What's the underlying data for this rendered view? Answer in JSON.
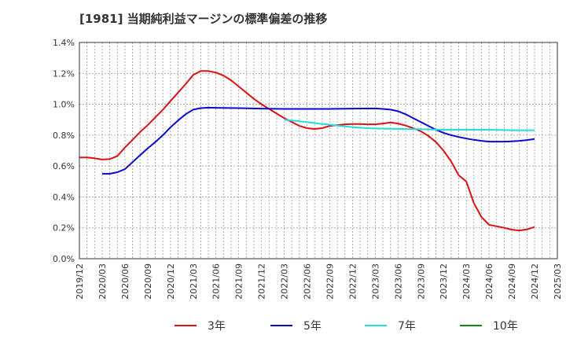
{
  "chart_data": {
    "type": "line",
    "title": "[1981]  当期純利益マージンの標準偏差の推移",
    "xlabel": "",
    "ylabel": "",
    "ylim": [
      0,
      1.4
    ],
    "y_ticks": [
      "0.0%",
      "0.2%",
      "0.4%",
      "0.6%",
      "0.8%",
      "1.0%",
      "1.2%",
      "1.4%"
    ],
    "x_ticks": [
      "2019/12",
      "2020/03",
      "2020/06",
      "2020/09",
      "2020/12",
      "2021/03",
      "2021/06",
      "2021/09",
      "2021/12",
      "2022/03",
      "2022/06",
      "2022/09",
      "2022/12",
      "2023/03",
      "2023/06",
      "2023/09",
      "2023/12",
      "2024/03",
      "2024/06",
      "2024/09",
      "2024/12",
      "2025/03"
    ],
    "grid": true,
    "legend_position": "bottom",
    "series": [
      {
        "name": "3年",
        "color": "#dd1111",
        "points": [
          [
            "2019/12",
            0.655
          ],
          [
            "2020/01",
            0.655
          ],
          [
            "2020/02",
            0.65
          ],
          [
            "2020/03",
            0.642
          ],
          [
            "2020/04",
            0.645
          ],
          [
            "2020/05",
            0.665
          ],
          [
            "2020/06",
            0.72
          ],
          [
            "2020/07",
            0.77
          ],
          [
            "2020/08",
            0.82
          ],
          [
            "2020/09",
            0.865
          ],
          [
            "2020/10",
            0.915
          ],
          [
            "2020/11",
            0.965
          ],
          [
            "2020/12",
            1.02
          ],
          [
            "2021/01",
            1.075
          ],
          [
            "2021/02",
            1.13
          ],
          [
            "2021/03",
            1.19
          ],
          [
            "2021/04",
            1.215
          ],
          [
            "2021/05",
            1.215
          ],
          [
            "2021/06",
            1.205
          ],
          [
            "2021/07",
            1.185
          ],
          [
            "2021/08",
            1.155
          ],
          [
            "2021/09",
            1.115
          ],
          [
            "2021/10",
            1.075
          ],
          [
            "2021/11",
            1.035
          ],
          [
            "2021/12",
            1.0
          ],
          [
            "2022/01",
            0.97
          ],
          [
            "2022/02",
            0.94
          ],
          [
            "2022/03",
            0.91
          ],
          [
            "2022/04",
            0.885
          ],
          [
            "2022/05",
            0.86
          ],
          [
            "2022/06",
            0.845
          ],
          [
            "2022/07",
            0.84
          ],
          [
            "2022/08",
            0.845
          ],
          [
            "2022/09",
            0.86
          ],
          [
            "2022/10",
            0.865
          ],
          [
            "2022/11",
            0.87
          ],
          [
            "2022/12",
            0.872
          ],
          [
            "2023/01",
            0.872
          ],
          [
            "2023/02",
            0.87
          ],
          [
            "2023/03",
            0.87
          ],
          [
            "2023/04",
            0.875
          ],
          [
            "2023/05",
            0.882
          ],
          [
            "2023/06",
            0.875
          ],
          [
            "2023/07",
            0.862
          ],
          [
            "2023/08",
            0.845
          ],
          [
            "2023/09",
            0.825
          ],
          [
            "2023/10",
            0.795
          ],
          [
            "2023/11",
            0.755
          ],
          [
            "2023/12",
            0.7
          ],
          [
            "2024/01",
            0.63
          ],
          [
            "2024/02",
            0.54
          ],
          [
            "2024/03",
            0.5
          ],
          [
            "2024/04",
            0.36
          ],
          [
            "2024/05",
            0.27
          ],
          [
            "2024/06",
            0.22
          ],
          [
            "2024/07",
            0.21
          ],
          [
            "2024/08",
            0.2
          ],
          [
            "2024/09",
            0.188
          ],
          [
            "2024/10",
            0.183
          ],
          [
            "2024/11",
            0.19
          ],
          [
            "2024/12",
            0.205
          ]
        ]
      },
      {
        "name": "5年",
        "color": "#0a0ad0",
        "points": [
          [
            "2020/03",
            0.55
          ],
          [
            "2020/04",
            0.55
          ],
          [
            "2020/05",
            0.56
          ],
          [
            "2020/06",
            0.58
          ],
          [
            "2020/07",
            0.625
          ],
          [
            "2020/08",
            0.67
          ],
          [
            "2020/09",
            0.715
          ],
          [
            "2020/10",
            0.755
          ],
          [
            "2020/11",
            0.8
          ],
          [
            "2020/12",
            0.85
          ],
          [
            "2021/01",
            0.895
          ],
          [
            "2021/02",
            0.935
          ],
          [
            "2021/03",
            0.965
          ],
          [
            "2021/04",
            0.975
          ],
          [
            "2021/05",
            0.978
          ],
          [
            "2021/06",
            0.977
          ],
          [
            "2021/09",
            0.975
          ],
          [
            "2021/12",
            0.972
          ],
          [
            "2022/03",
            0.97
          ],
          [
            "2022/06",
            0.97
          ],
          [
            "2022/09",
            0.97
          ],
          [
            "2022/12",
            0.972
          ],
          [
            "2023/03",
            0.973
          ],
          [
            "2023/04",
            0.97
          ],
          [
            "2023/05",
            0.965
          ],
          [
            "2023/06",
            0.955
          ],
          [
            "2023/07",
            0.935
          ],
          [
            "2023/08",
            0.91
          ],
          [
            "2023/09",
            0.885
          ],
          [
            "2023/10",
            0.86
          ],
          [
            "2023/11",
            0.835
          ],
          [
            "2023/12",
            0.815
          ],
          [
            "2024/01",
            0.8
          ],
          [
            "2024/02",
            0.788
          ],
          [
            "2024/03",
            0.778
          ],
          [
            "2024/04",
            0.77
          ],
          [
            "2024/05",
            0.763
          ],
          [
            "2024/06",
            0.758
          ],
          [
            "2024/08",
            0.758
          ],
          [
            "2024/09",
            0.76
          ],
          [
            "2024/10",
            0.763
          ],
          [
            "2024/11",
            0.768
          ],
          [
            "2024/12",
            0.775
          ]
        ]
      },
      {
        "name": "7年",
        "color": "#22dddd",
        "points": [
          [
            "2022/03",
            0.9
          ],
          [
            "2022/04",
            0.895
          ],
          [
            "2022/05",
            0.89
          ],
          [
            "2022/06",
            0.885
          ],
          [
            "2022/07",
            0.878
          ],
          [
            "2022/08",
            0.872
          ],
          [
            "2022/09",
            0.868
          ],
          [
            "2022/10",
            0.862
          ],
          [
            "2022/11",
            0.857
          ],
          [
            "2022/12",
            0.852
          ],
          [
            "2023/01",
            0.848
          ],
          [
            "2023/02",
            0.845
          ],
          [
            "2023/03",
            0.843
          ],
          [
            "2023/06",
            0.84
          ],
          [
            "2023/09",
            0.838
          ],
          [
            "2023/12",
            0.835
          ],
          [
            "2024/03",
            0.835
          ],
          [
            "2024/06",
            0.835
          ],
          [
            "2024/09",
            0.832
          ],
          [
            "2024/12",
            0.832
          ]
        ]
      },
      {
        "name": "10年",
        "color": "#118811",
        "points": []
      }
    ]
  }
}
